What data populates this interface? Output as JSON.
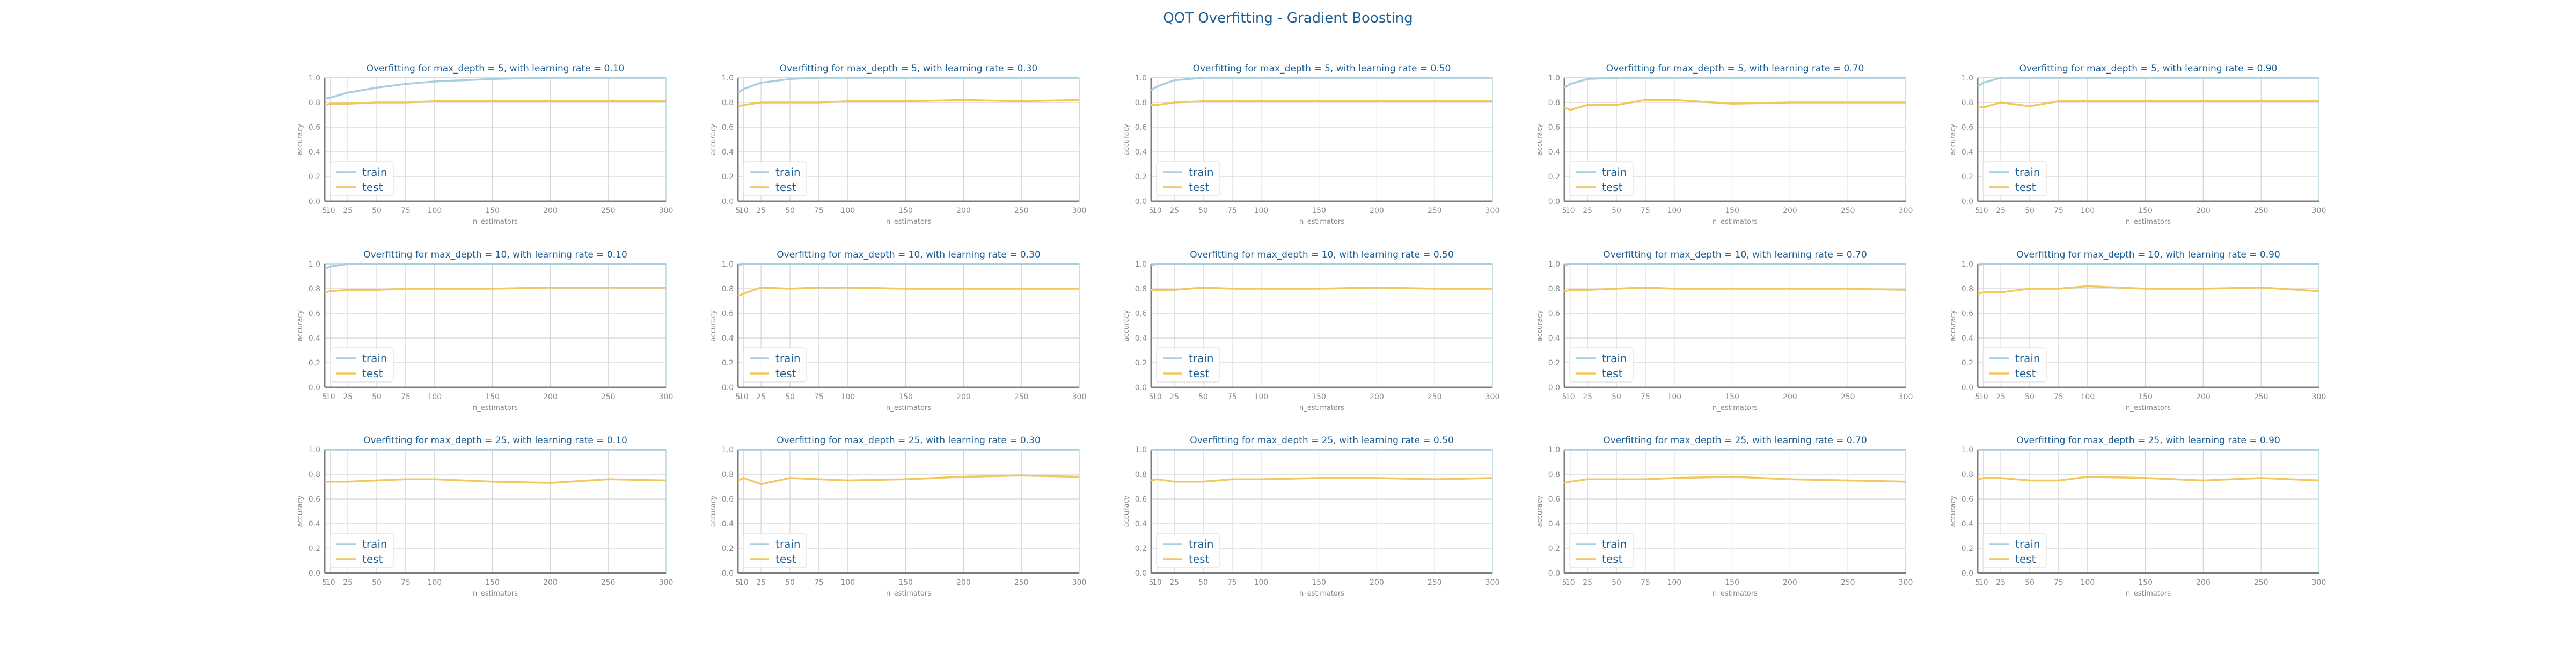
{
  "figure_title": "QOT Overfitting - Gradient Boosting",
  "colors": {
    "train": "#a6cfe0",
    "test": "#f2c75c",
    "title": "#1f5f94",
    "axis_text": "#8a8a8a",
    "grid": "#d4d4d4",
    "frame": "#b9d8e4"
  },
  "chart_data": {
    "type": "line",
    "layout": {
      "rows": 3,
      "cols": 5
    },
    "x": [
      5,
      10,
      25,
      50,
      75,
      100,
      150,
      200,
      250,
      300
    ],
    "xticks": [
      5,
      10,
      25,
      50,
      75,
      100,
      150,
      200,
      250,
      300
    ],
    "xtick_labels": [
      "5",
      "10",
      "25",
      "50",
      "75",
      "100",
      "150",
      "200",
      "250",
      "300"
    ],
    "yticks": [
      0.0,
      0.2,
      0.4,
      0.6,
      0.8,
      1.0
    ],
    "ytick_labels": [
      "0.0",
      "0.2",
      "0.4",
      "0.6",
      "0.8",
      "1.0"
    ],
    "xlim": [
      5,
      300
    ],
    "ylim": [
      0,
      1
    ],
    "xlabel": "n_estimators",
    "ylabel": "accuracy",
    "legend_position": "lower-left",
    "grid": true,
    "charts": [
      {
        "title": "Overfitting for max_depth = 5, with learning rate = 0.10",
        "series": [
          {
            "name": "train",
            "values": [
              0.83,
              0.84,
              0.88,
              0.92,
              0.95,
              0.97,
              0.99,
              1.0,
              1.0,
              1.0
            ]
          },
          {
            "name": "test",
            "values": [
              0.78,
              0.79,
              0.79,
              0.8,
              0.8,
              0.81,
              0.81,
              0.81,
              0.81,
              0.81
            ]
          }
        ]
      },
      {
        "title": "Overfitting for max_depth = 5, with learning rate = 0.30",
        "series": [
          {
            "name": "train",
            "values": [
              0.88,
              0.91,
              0.96,
              0.99,
              1.0,
              1.0,
              1.0,
              1.0,
              1.0,
              1.0
            ]
          },
          {
            "name": "test",
            "values": [
              0.77,
              0.78,
              0.8,
              0.8,
              0.8,
              0.81,
              0.81,
              0.82,
              0.81,
              0.82
            ]
          }
        ]
      },
      {
        "title": "Overfitting for max_depth = 5, with learning rate = 0.50",
        "series": [
          {
            "name": "train",
            "values": [
              0.9,
              0.93,
              0.98,
              1.0,
              1.0,
              1.0,
              1.0,
              1.0,
              1.0,
              1.0
            ]
          },
          {
            "name": "test",
            "values": [
              0.78,
              0.78,
              0.8,
              0.81,
              0.81,
              0.81,
              0.81,
              0.81,
              0.81,
              0.81
            ]
          }
        ]
      },
      {
        "title": "Overfitting for max_depth = 5, with learning rate = 0.70",
        "series": [
          {
            "name": "train",
            "values": [
              0.92,
              0.95,
              0.99,
              1.0,
              1.0,
              1.0,
              1.0,
              1.0,
              1.0,
              1.0
            ]
          },
          {
            "name": "test",
            "values": [
              0.76,
              0.74,
              0.78,
              0.78,
              0.82,
              0.82,
              0.79,
              0.8,
              0.8,
              0.8
            ]
          }
        ]
      },
      {
        "title": "Overfitting for max_depth = 5, with learning rate = 0.90",
        "series": [
          {
            "name": "train",
            "values": [
              0.93,
              0.96,
              1.0,
              1.0,
              1.0,
              1.0,
              1.0,
              1.0,
              1.0,
              1.0
            ]
          },
          {
            "name": "test",
            "values": [
              0.77,
              0.76,
              0.8,
              0.77,
              0.81,
              0.81,
              0.81,
              0.81,
              0.81,
              0.81
            ]
          }
        ]
      },
      {
        "title": "Overfitting for max_depth = 10, with learning rate = 0.10",
        "series": [
          {
            "name": "train",
            "values": [
              0.96,
              0.98,
              1.0,
              1.0,
              1.0,
              1.0,
              1.0,
              1.0,
              1.0,
              1.0
            ]
          },
          {
            "name": "test",
            "values": [
              0.77,
              0.78,
              0.79,
              0.79,
              0.8,
              0.8,
              0.8,
              0.81,
              0.81,
              0.81
            ]
          }
        ]
      },
      {
        "title": "Overfitting for max_depth = 10, with learning rate = 0.30",
        "series": [
          {
            "name": "train",
            "values": [
              0.99,
              1.0,
              1.0,
              1.0,
              1.0,
              1.0,
              1.0,
              1.0,
              1.0,
              1.0
            ]
          },
          {
            "name": "test",
            "values": [
              0.74,
              0.76,
              0.81,
              0.8,
              0.81,
              0.81,
              0.8,
              0.8,
              0.8,
              0.8
            ]
          }
        ]
      },
      {
        "title": "Overfitting for max_depth = 10, with learning rate = 0.50",
        "series": [
          {
            "name": "train",
            "values": [
              0.99,
              1.0,
              1.0,
              1.0,
              1.0,
              1.0,
              1.0,
              1.0,
              1.0,
              1.0
            ]
          },
          {
            "name": "test",
            "values": [
              0.79,
              0.79,
              0.79,
              0.81,
              0.8,
              0.8,
              0.8,
              0.81,
              0.8,
              0.8
            ]
          }
        ]
      },
      {
        "title": "Overfitting for max_depth = 10, with learning rate = 0.70",
        "series": [
          {
            "name": "train",
            "values": [
              0.99,
              1.0,
              1.0,
              1.0,
              1.0,
              1.0,
              1.0,
              1.0,
              1.0,
              1.0
            ]
          },
          {
            "name": "test",
            "values": [
              0.78,
              0.79,
              0.79,
              0.8,
              0.81,
              0.8,
              0.8,
              0.8,
              0.8,
              0.79
            ]
          }
        ]
      },
      {
        "title": "Overfitting for max_depth = 10, with learning rate = 0.90",
        "series": [
          {
            "name": "train",
            "values": [
              0.99,
              1.0,
              1.0,
              1.0,
              1.0,
              1.0,
              1.0,
              1.0,
              1.0,
              1.0
            ]
          },
          {
            "name": "test",
            "values": [
              0.76,
              0.77,
              0.77,
              0.8,
              0.8,
              0.82,
              0.8,
              0.8,
              0.81,
              0.78
            ]
          }
        ]
      },
      {
        "title": "Overfitting for max_depth = 25, with learning rate = 0.10",
        "series": [
          {
            "name": "train",
            "values": [
              1.0,
              1.0,
              1.0,
              1.0,
              1.0,
              1.0,
              1.0,
              1.0,
              1.0,
              1.0
            ]
          },
          {
            "name": "test",
            "values": [
              0.74,
              0.74,
              0.74,
              0.75,
              0.76,
              0.76,
              0.74,
              0.73,
              0.76,
              0.75
            ]
          }
        ]
      },
      {
        "title": "Overfitting for max_depth = 25, with learning rate = 0.30",
        "series": [
          {
            "name": "train",
            "values": [
              1.0,
              1.0,
              1.0,
              1.0,
              1.0,
              1.0,
              1.0,
              1.0,
              1.0,
              1.0
            ]
          },
          {
            "name": "test",
            "values": [
              0.75,
              0.77,
              0.72,
              0.77,
              0.76,
              0.75,
              0.76,
              0.78,
              0.79,
              0.78
            ]
          }
        ]
      },
      {
        "title": "Overfitting for max_depth = 25, with learning rate = 0.50",
        "series": [
          {
            "name": "train",
            "values": [
              1.0,
              1.0,
              1.0,
              1.0,
              1.0,
              1.0,
              1.0,
              1.0,
              1.0,
              1.0
            ]
          },
          {
            "name": "test",
            "values": [
              0.75,
              0.76,
              0.74,
              0.74,
              0.76,
              0.76,
              0.77,
              0.77,
              0.76,
              0.77
            ]
          }
        ]
      },
      {
        "title": "Overfitting for max_depth = 25, with learning rate = 0.70",
        "series": [
          {
            "name": "train",
            "values": [
              1.0,
              1.0,
              1.0,
              1.0,
              1.0,
              1.0,
              1.0,
              1.0,
              1.0,
              1.0
            ]
          },
          {
            "name": "test",
            "values": [
              0.73,
              0.74,
              0.76,
              0.76,
              0.76,
              0.77,
              0.78,
              0.76,
              0.75,
              0.74
            ]
          }
        ]
      },
      {
        "title": "Overfitting for max_depth = 25, with learning rate = 0.90",
        "series": [
          {
            "name": "train",
            "values": [
              1.0,
              1.0,
              1.0,
              1.0,
              1.0,
              1.0,
              1.0,
              1.0,
              1.0,
              1.0
            ]
          },
          {
            "name": "test",
            "values": [
              0.76,
              0.77,
              0.77,
              0.75,
              0.75,
              0.78,
              0.77,
              0.75,
              0.77,
              0.75
            ]
          }
        ]
      }
    ]
  }
}
